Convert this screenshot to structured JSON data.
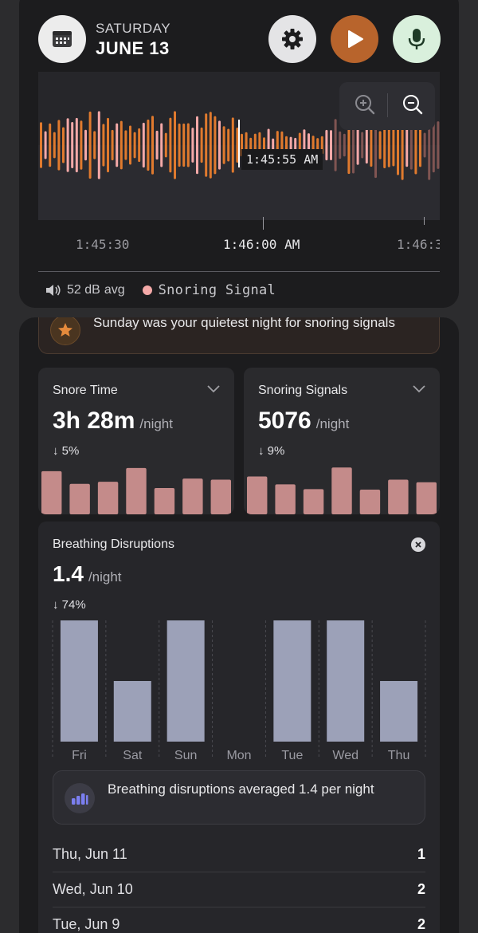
{
  "header": {
    "day_of_week": "SATURDAY",
    "date": "JUNE 13",
    "buttons": {
      "calendar": "calendar-icon",
      "settings": "gear-icon",
      "play": "play-icon",
      "mic": "microphone-icon"
    }
  },
  "recording": {
    "cursor_time": "1:45:55 AM",
    "timeline_ticks": [
      "1:45:30",
      "1:46:00 AM",
      "1:46:3"
    ],
    "level_text": "52 dB",
    "level_suffix": "avg",
    "legend_label": "Snoring Signal",
    "colors": {
      "wave": "#e07a2e",
      "snore": "#f4a9a8",
      "background": "#26262a"
    }
  },
  "insight": {
    "text": "Sunday was your quietest night for snoring signals"
  },
  "snore_time": {
    "title": "Snore Time",
    "value": "3h 28m",
    "unit": "/night",
    "change": "↓ 5%",
    "bars": [
      0.82,
      0.58,
      0.62,
      0.88,
      0.5,
      0.68,
      0.66
    ]
  },
  "snoring_signals": {
    "title": "Snoring Signals",
    "value": "5076",
    "unit": "/night",
    "change": "↓ 9%",
    "bars": [
      0.72,
      0.57,
      0.48,
      0.89,
      0.47,
      0.66,
      0.61
    ]
  },
  "disruptions": {
    "title": "Breathing Disruptions",
    "value": "1.4",
    "unit": "/night",
    "change": "↓ 74%",
    "note": "Breathing disruptions averaged 1.4 per night",
    "chart_data": {
      "type": "bar",
      "categories": [
        "Fri",
        "Sat",
        "Sun",
        "Mon",
        "Tue",
        "Wed",
        "Thu"
      ],
      "values": [
        2,
        1,
        2,
        0,
        2,
        2,
        1
      ],
      "ylim": [
        0,
        2
      ]
    },
    "days": [
      {
        "label": "Thu, Jun 11",
        "count": "1"
      },
      {
        "label": "Wed, Jun 10",
        "count": "2"
      },
      {
        "label": "Tue, Jun 9",
        "count": "2"
      }
    ]
  }
}
